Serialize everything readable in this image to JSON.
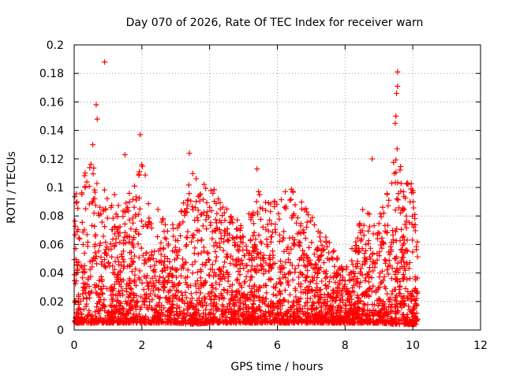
{
  "chart_data": {
    "type": "scatter",
    "title": "Day 070 of 2026, Rate Of TEC Index for receiver warn",
    "xlabel": "GPS time / hours",
    "ylabel": "ROTI / TECUs",
    "xlim": [
      0,
      12
    ],
    "ylim": [
      0,
      0.2
    ],
    "xticks": [
      0,
      2,
      4,
      6,
      8,
      10,
      12
    ],
    "yticks": [
      0,
      0.02,
      0.04,
      0.06,
      0.08,
      0.1,
      0.12,
      0.14,
      0.16,
      0.18,
      0.2
    ],
    "xtick_labels": [
      "0",
      "2",
      "4",
      "6",
      "8",
      "10",
      "12"
    ],
    "ytick_labels": [
      "0",
      "0.02",
      "0.04",
      "0.06",
      "0.08",
      "0.1",
      "0.12",
      "0.14",
      "0.16",
      "0.18",
      "0.2"
    ],
    "grid": true,
    "marker": "plus",
    "marker_color": "#ff0000",
    "series": [
      {
        "name": "ROTI",
        "x_range": [
          0,
          10.15
        ],
        "notable_points": [
          {
            "x": 0.9,
            "y": 0.188
          },
          {
            "x": 0.65,
            "y": 0.158
          },
          {
            "x": 0.68,
            "y": 0.148
          },
          {
            "x": 0.55,
            "y": 0.13
          },
          {
            "x": 1.95,
            "y": 0.137
          },
          {
            "x": 1.5,
            "y": 0.123
          },
          {
            "x": 3.4,
            "y": 0.124
          },
          {
            "x": 5.4,
            "y": 0.113
          },
          {
            "x": 8.8,
            "y": 0.12
          },
          {
            "x": 9.55,
            "y": 0.181
          },
          {
            "x": 9.55,
            "y": 0.171
          },
          {
            "x": 9.52,
            "y": 0.166
          },
          {
            "x": 9.5,
            "y": 0.15
          },
          {
            "x": 9.48,
            "y": 0.145
          }
        ],
        "envelope": [
          {
            "x": 0.0,
            "ymin": 0.005,
            "ymax": 0.095
          },
          {
            "x": 0.5,
            "ymin": 0.005,
            "ymax": 0.12
          },
          {
            "x": 1.0,
            "ymin": 0.005,
            "ymax": 0.1
          },
          {
            "x": 1.5,
            "ymin": 0.005,
            "ymax": 0.09
          },
          {
            "x": 2.0,
            "ymin": 0.005,
            "ymax": 0.125
          },
          {
            "x": 2.5,
            "ymin": 0.005,
            "ymax": 0.085
          },
          {
            "x": 3.0,
            "ymin": 0.005,
            "ymax": 0.075
          },
          {
            "x": 3.5,
            "ymin": 0.004,
            "ymax": 0.11
          },
          {
            "x": 4.0,
            "ymin": 0.005,
            "ymax": 0.105
          },
          {
            "x": 4.5,
            "ymin": 0.005,
            "ymax": 0.085
          },
          {
            "x": 5.0,
            "ymin": 0.005,
            "ymax": 0.075
          },
          {
            "x": 5.5,
            "ymin": 0.005,
            "ymax": 0.1
          },
          {
            "x": 6.0,
            "ymin": 0.005,
            "ymax": 0.095
          },
          {
            "x": 6.5,
            "ymin": 0.005,
            "ymax": 0.1
          },
          {
            "x": 7.0,
            "ymin": 0.005,
            "ymax": 0.08
          },
          {
            "x": 7.5,
            "ymin": 0.005,
            "ymax": 0.065
          },
          {
            "x": 8.0,
            "ymin": 0.005,
            "ymax": 0.04
          },
          {
            "x": 8.5,
            "ymin": 0.005,
            "ymax": 0.085
          },
          {
            "x": 9.0,
            "ymin": 0.005,
            "ymax": 0.08
          },
          {
            "x": 9.5,
            "ymin": 0.004,
            "ymax": 0.13
          },
          {
            "x": 10.0,
            "ymin": 0.004,
            "ymax": 0.1
          },
          {
            "x": 10.15,
            "ymin": 0.004,
            "ymax": 0.06
          }
        ]
      }
    ]
  }
}
